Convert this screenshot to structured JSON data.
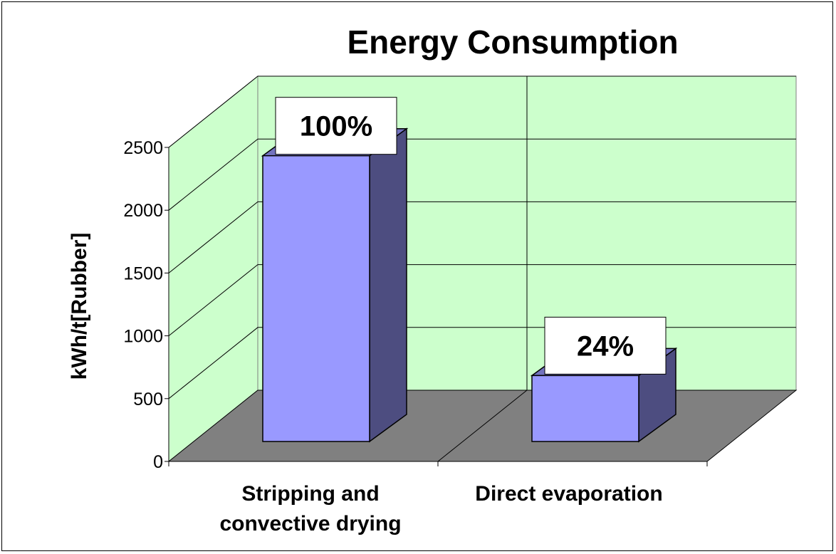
{
  "chart_data": {
    "type": "bar",
    "title": "Energy Consumption",
    "xlabel": "",
    "ylabel": "kWh/t[Rubber]",
    "ylim": [
      0,
      2500
    ],
    "yticks": [
      0,
      500,
      1000,
      1500,
      2000,
      2500
    ],
    "categories": [
      "Stripping and convective drying",
      "Direct evaporation"
    ],
    "category_lines": [
      [
        "Stripping and",
        "convective drying"
      ],
      [
        "Direct evaporation"
      ]
    ],
    "values": [
      2275,
      525
    ],
    "data_labels": [
      "100%",
      "24%"
    ],
    "grid": true,
    "legend": "none",
    "colors": {
      "wall": "#ccffcc",
      "floor": "#808080",
      "bar_front": "#9999ff",
      "bar_side": "#4d4d80",
      "bar_top": "#7373c0"
    }
  }
}
